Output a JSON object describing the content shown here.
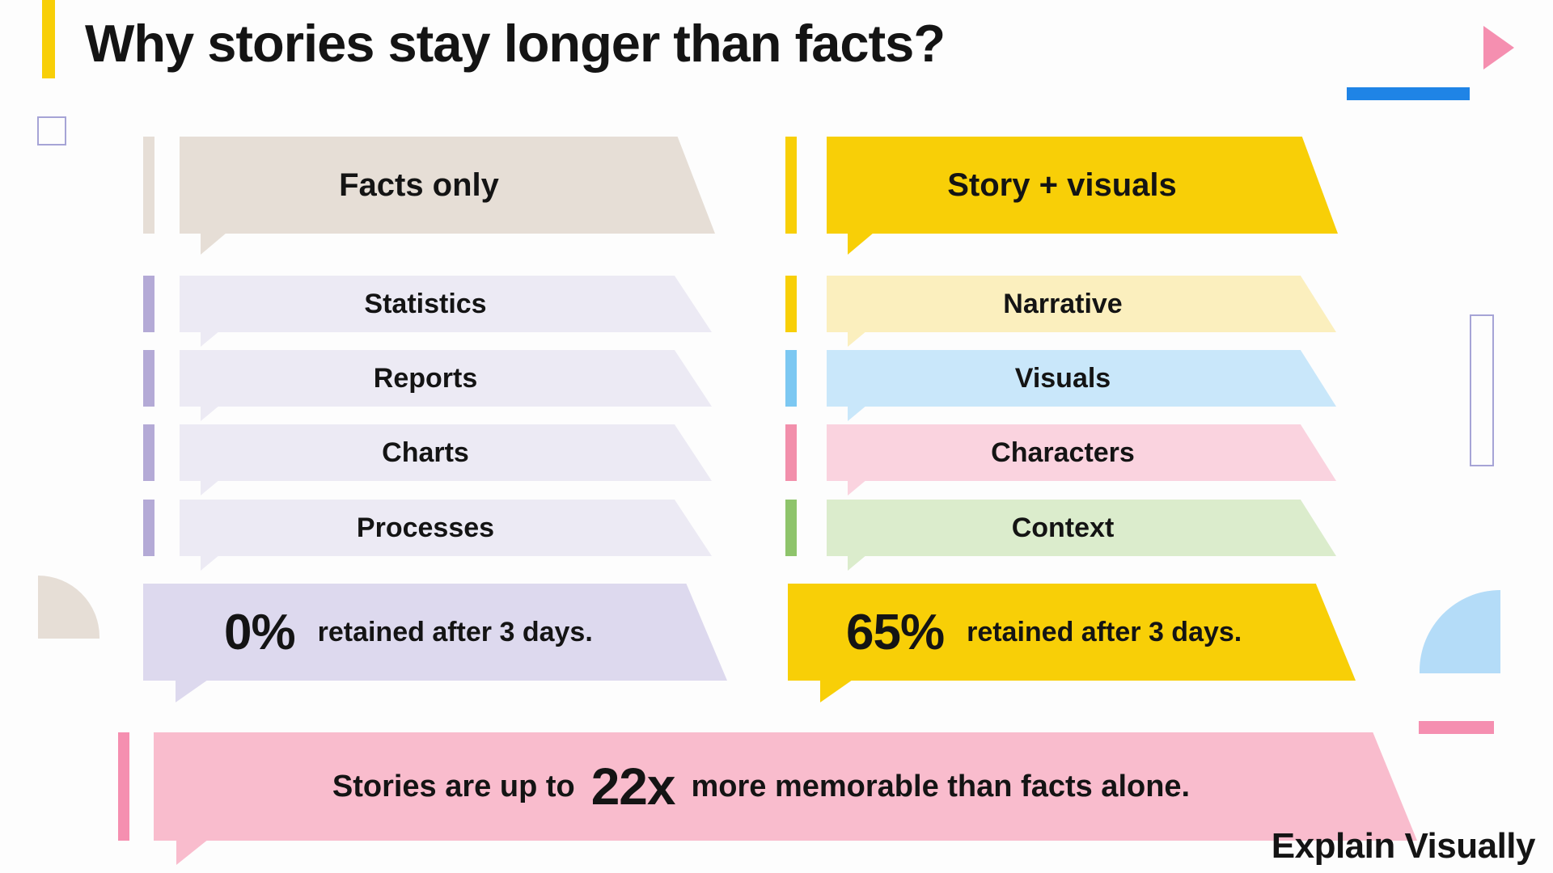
{
  "title": "Why stories stay longer than facts?",
  "left": {
    "header": "Facts only",
    "items": [
      "Statistics",
      "Reports",
      "Charts",
      "Processes"
    ],
    "stat_value": "0%",
    "stat_label": "retained after 3 days."
  },
  "right": {
    "header": "Story + visuals",
    "items": [
      "Narrative",
      "Visuals",
      "Characters",
      "Context"
    ],
    "stat_value": "65%",
    "stat_label": "retained after 3 days."
  },
  "footer": {
    "prefix": "Stories are up to",
    "value": "22x",
    "suffix": "more memorable than facts alone."
  },
  "brand": "Explain Visually",
  "colors": {
    "yellow": "#f8cf07",
    "beige": "#e6ded6",
    "lavender_light": "#eceaf4",
    "lavender": "#ddd9ee",
    "lavender_strip": "#b4aad6",
    "yellow_light": "#fbefbe",
    "blue_light": "#c9e7fa",
    "blue_strip": "#7cc8f2",
    "pink_light": "#fad3df",
    "pink_strip": "#f28fab",
    "green_light": "#dbeccc",
    "green_strip": "#8ec46b",
    "pink_banner": "#f9bccd",
    "accent_blue": "#1f84e6",
    "accent_pink": "#f37fa4"
  }
}
